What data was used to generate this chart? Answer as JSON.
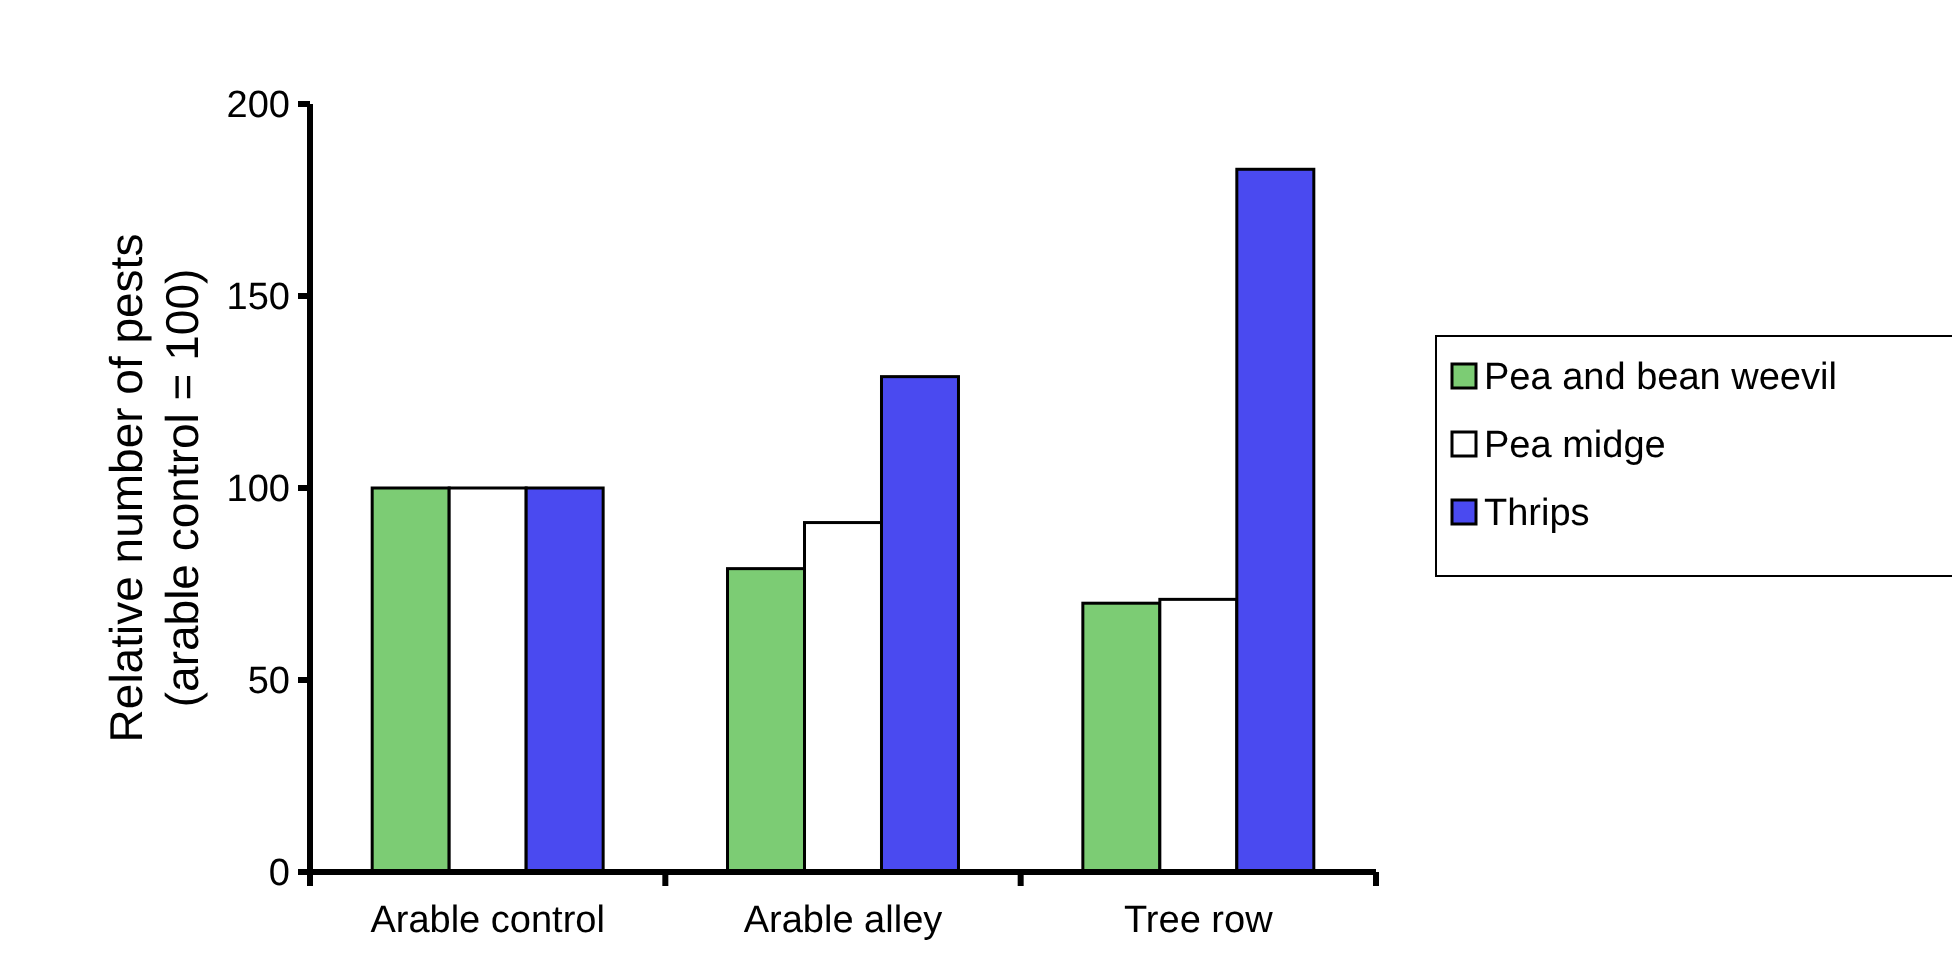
{
  "chart_data": {
    "type": "bar",
    "ylabel": "Relative number of pests\n(arable control = 100)",
    "categories": [
      "Arable control",
      "Arable alley",
      "Tree row"
    ],
    "series": [
      {
        "name": "Pea and bean weevil",
        "color": "#7ccc74",
        "values": [
          100,
          79,
          70
        ]
      },
      {
        "name": "Pea midge",
        "color": "#ffffff",
        "values": [
          100,
          91,
          71
        ]
      },
      {
        "name": "Thrips",
        "color": "#4a4af0",
        "values": [
          100,
          129,
          183
        ]
      }
    ],
    "ylim": [
      0,
      200
    ],
    "yticks": [
      0,
      50,
      100,
      150,
      200
    ],
    "grid": false,
    "legend": "right"
  }
}
